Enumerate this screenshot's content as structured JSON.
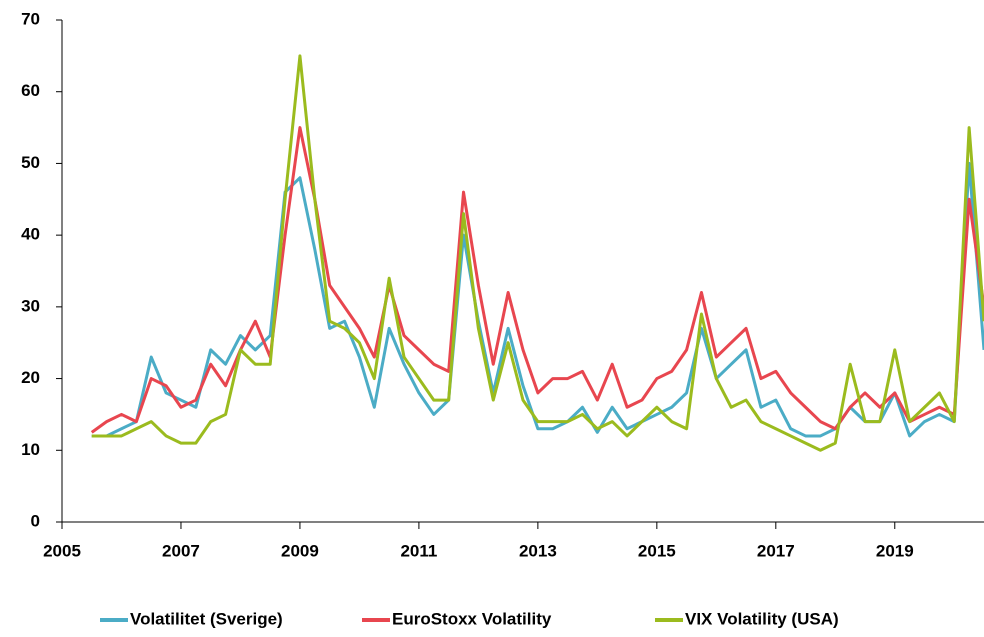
{
  "chart_data": {
    "type": "line",
    "x": [
      2005.5,
      2005.75,
      2006,
      2006.25,
      2006.5,
      2006.75,
      2007,
      2007.25,
      2007.5,
      2007.75,
      2008,
      2008.25,
      2008.5,
      2008.75,
      2009,
      2009.25,
      2009.5,
      2009.75,
      2010,
      2010.25,
      2010.5,
      2010.75,
      2011,
      2011.25,
      2011.5,
      2011.75,
      2012,
      2012.25,
      2012.5,
      2012.75,
      2013,
      2013.25,
      2013.5,
      2013.75,
      2014,
      2014.25,
      2014.5,
      2014.75,
      2015,
      2015.25,
      2015.5,
      2015.75,
      2016,
      2016.25,
      2016.5,
      2016.75,
      2017,
      2017.25,
      2017.5,
      2017.75,
      2018,
      2018.25,
      2018.5,
      2018.75,
      2019,
      2019.25,
      2019.5,
      2019.75,
      2020,
      2020.25,
      2020.5
    ],
    "series": [
      {
        "name": "Volatilitet (Sverige)",
        "color": "#4bacc6",
        "values": [
          12,
          12,
          13,
          14,
          23,
          18,
          17,
          16,
          24,
          22,
          26,
          24,
          26,
          46,
          48,
          38,
          27,
          28,
          23,
          16,
          27,
          22,
          18,
          15,
          17,
          40,
          28,
          18,
          27,
          19,
          13,
          13,
          14,
          16,
          12.5,
          16,
          13,
          14,
          15,
          16,
          18,
          27,
          20,
          22,
          24,
          16,
          17,
          13,
          12,
          12,
          13,
          16,
          14,
          14,
          18,
          12,
          14,
          15,
          14,
          50,
          24
        ]
      },
      {
        "name": "EuroStoxx Volatility",
        "color": "#e8464f",
        "values": [
          12.5,
          14,
          15,
          14,
          20,
          19,
          16,
          17,
          22,
          19,
          24,
          28,
          23,
          40,
          55,
          45,
          33,
          30,
          27,
          23,
          33,
          26,
          24,
          22,
          21,
          46,
          33,
          22,
          32,
          24,
          18,
          20,
          20,
          21,
          17,
          22,
          16,
          17,
          20,
          21,
          24,
          32,
          23,
          25,
          27,
          20,
          21,
          18,
          16,
          14,
          13,
          16,
          18,
          16,
          18,
          14,
          15,
          16,
          15,
          45,
          30
        ]
      },
      {
        "name": "VIX Volatility (USA)",
        "color": "#9bbb1e",
        "values": [
          12,
          12,
          12,
          13,
          14,
          12,
          11,
          11,
          14,
          15,
          24,
          22,
          22,
          45,
          65,
          45,
          28,
          27,
          25,
          20,
          34,
          23,
          20,
          17,
          17,
          43,
          27,
          17,
          25,
          17,
          14,
          14,
          14,
          15,
          13,
          14,
          12,
          14,
          16,
          14,
          13,
          29,
          20,
          16,
          17,
          14,
          13,
          12,
          11,
          10,
          11,
          22,
          14,
          14,
          24,
          14,
          16,
          18,
          14,
          55,
          28
        ]
      }
    ],
    "xlim": [
      2005,
      2020.5
    ],
    "xticks": [
      2005,
      2007,
      2009,
      2011,
      2013,
      2015,
      2017,
      2019
    ],
    "ylim": [
      0,
      70
    ],
    "yticks": [
      0,
      10,
      20,
      30,
      40,
      50,
      60,
      70
    ],
    "grid": false,
    "legend": "bottom"
  }
}
